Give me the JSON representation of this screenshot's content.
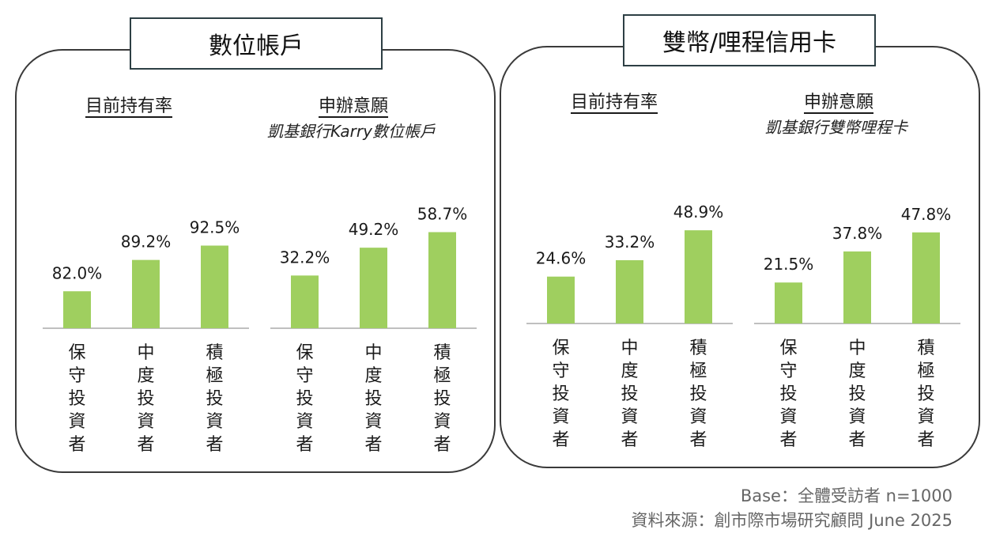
{
  "panels": [
    {
      "title": "數位帳戶",
      "groups": [
        {
          "title": "目前持有率",
          "subtitle": ""
        },
        {
          "title": "申辦意願",
          "subtitle": "凱基銀行Karry數位帳戶"
        }
      ]
    },
    {
      "title": "雙幣/哩程信用卡",
      "groups": [
        {
          "title": "目前持有率",
          "subtitle": ""
        },
        {
          "title": "申辦意願",
          "subtitle": "凱基銀行雙幣哩程卡"
        }
      ]
    }
  ],
  "footer": {
    "base": "Base：全體受訪者 n=1000",
    "source": "資料來源：創市際市場研究顧問 June 2025"
  },
  "colors": {
    "bar": "#9fcf5f",
    "axis": "#bfbfbf",
    "panel_border": "#3a3a3a"
  },
  "chart_data": [
    {
      "type": "bar",
      "title": "目前持有率",
      "categories": [
        "保守投資者",
        "中度投資者",
        "積極投資者"
      ],
      "values": [
        82.0,
        89.2,
        92.5
      ],
      "value_labels": [
        "82.0%",
        "89.2%",
        "92.5%"
      ]
    },
    {
      "type": "bar",
      "title": "申辦意願",
      "categories": [
        "保守投資者",
        "中度投資者",
        "積極投資者"
      ],
      "values": [
        32.2,
        49.2,
        58.7
      ],
      "value_labels": [
        "32.2%",
        "49.2%",
        "58.7%"
      ]
    },
    {
      "type": "bar",
      "title": "目前持有率",
      "categories": [
        "保守投資者",
        "中度投資者",
        "積極投資者"
      ],
      "values": [
        24.6,
        33.2,
        48.9
      ],
      "value_labels": [
        "24.6%",
        "33.2%",
        "48.9%"
      ]
    },
    {
      "type": "bar",
      "title": "申辦意願",
      "categories": [
        "保守投資者",
        "中度投資者",
        "積極投資者"
      ],
      "values": [
        21.5,
        37.8,
        47.8
      ],
      "value_labels": [
        "21.5%",
        "37.8%",
        "47.8%"
      ]
    }
  ]
}
